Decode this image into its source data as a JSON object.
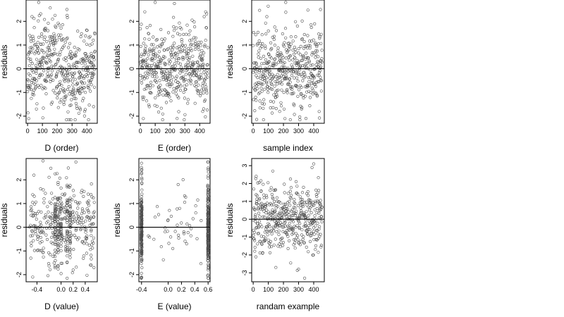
{
  "chart_data": [
    {
      "type": "scatter",
      "xlabel": "D (order)",
      "ylabel": "residuals",
      "xlim": [
        -10,
        470
      ],
      "ylim": [
        -2.3,
        2.9
      ],
      "xticks": [
        0,
        100,
        200,
        300,
        400
      ],
      "xtick_labels": [
        "0",
        "100",
        "200",
        "300",
        "400"
      ],
      "yticks": [
        -2,
        -1,
        0,
        1,
        2
      ],
      "ytick_labels": [
        "-2",
        "-1",
        "0",
        "1",
        "2"
      ],
      "hline": 0,
      "x_kind": "index",
      "x_max": 455,
      "n_points": 455,
      "noise_seed": 11,
      "sd": 0.85,
      "trend": "wave",
      "points": [
        {
          "x": 8,
          "y": -2.1
        },
        {
          "x": 30,
          "y": 2.2
        },
        {
          "x": 75,
          "y": 2.8
        },
        {
          "x": 60,
          "y": -1.7
        },
        {
          "x": 245,
          "y": -1.5
        },
        {
          "x": 265,
          "y": 2.5
        },
        {
          "x": 385,
          "y": -1.8
        },
        {
          "x": 445,
          "y": -1.6
        }
      ]
    },
    {
      "type": "scatter",
      "xlabel": "E (order)",
      "ylabel": "residuals",
      "xlim": [
        -10,
        470
      ],
      "ylim": [
        -2.3,
        2.9
      ],
      "xticks": [
        0,
        100,
        200,
        300,
        400
      ],
      "xtick_labels": [
        "0",
        "100",
        "200",
        "300",
        "400"
      ],
      "yticks": [
        -2,
        -1,
        0,
        1,
        2
      ],
      "ytick_labels": [
        "-2",
        "-1",
        "0",
        "1",
        "2"
      ],
      "hline": 0,
      "x_kind": "index",
      "x_max": 455,
      "n_points": 455,
      "noise_seed": 23,
      "sd": 0.85,
      "trend": "none",
      "points": [
        {
          "x": 20,
          "y": -2.1
        },
        {
          "x": 30,
          "y": 2.4
        },
        {
          "x": 100,
          "y": 2.8
        },
        {
          "x": 60,
          "y": -1.6
        },
        {
          "x": 420,
          "y": -1.8
        },
        {
          "x": 440,
          "y": 2.4
        },
        {
          "x": 430,
          "y": 2.2
        }
      ]
    },
    {
      "type": "scatter",
      "xlabel": "sample index",
      "ylabel": "residuals",
      "xlim": [
        -10,
        470
      ],
      "ylim": [
        -2.3,
        2.9
      ],
      "xticks": [
        0,
        100,
        200,
        300,
        400
      ],
      "xtick_labels": [
        "0",
        "100",
        "200",
        "300",
        "400"
      ],
      "yticks": [
        -2,
        -1,
        0,
        1,
        2
      ],
      "ytick_labels": [
        "-2",
        "-1",
        "0",
        "1",
        "2"
      ],
      "hline": 0,
      "x_kind": "index",
      "x_max": 455,
      "n_points": 455,
      "noise_seed": 37,
      "sd": 0.85,
      "trend": "none",
      "points": [
        {
          "x": 90,
          "y": 2.2
        },
        {
          "x": 215,
          "y": 2.8
        },
        {
          "x": 210,
          "y": -2.1
        },
        {
          "x": 445,
          "y": 2.5
        },
        {
          "x": 320,
          "y": -1.7
        },
        {
          "x": 175,
          "y": -1.8
        }
      ]
    },
    {
      "type": "scatter",
      "xlabel": "D (value)",
      "ylabel": "residuals",
      "xlim": [
        -0.58,
        0.6
      ],
      "ylim": [
        -2.3,
        2.9
      ],
      "xticks": [
        -0.4,
        0.0,
        0.2,
        0.4
      ],
      "xtick_labels": [
        "-0.4",
        "0.0",
        "0.2",
        "0.4"
      ],
      "yticks": [
        -2,
        -1,
        0,
        1,
        2
      ],
      "ytick_labels": [
        "-2",
        "-1",
        "0",
        "1",
        "2"
      ],
      "hline": 0,
      "x_kind": "uniform",
      "x_range": [
        -0.52,
        0.55
      ],
      "n_points": 455,
      "noise_seed": 51,
      "sd": 0.85,
      "trend": "none",
      "stacks": [
        -0.1,
        -0.05,
        0.0,
        0.1,
        0.15
      ],
      "points": [
        {
          "x": -0.47,
          "y": -2.1
        },
        {
          "x": -0.45,
          "y": 2.2
        },
        {
          "x": -0.3,
          "y": 2.8
        },
        {
          "x": 0.12,
          "y": 2.5
        },
        {
          "x": 0.2,
          "y": -1.8
        },
        {
          "x": 0.5,
          "y": -1.6
        }
      ]
    },
    {
      "type": "scatter",
      "xlabel": "E (value)",
      "ylabel": "residuals",
      "xlim": [
        -0.44,
        0.63
      ],
      "ylim": [
        -2.3,
        2.9
      ],
      "xticks": [
        -0.4,
        0.0,
        0.2,
        0.4,
        0.6
      ],
      "xtick_labels": [
        "-0.4",
        "0.0",
        "0.2",
        "0.4",
        "0.6"
      ],
      "yticks": [
        -2,
        -1,
        0,
        1,
        2
      ],
      "ytick_labels": [
        "-2",
        "-1",
        "0",
        "1",
        "2"
      ],
      "hline": 0,
      "x_kind": "two-columns",
      "columns": [
        -0.4,
        0.6
      ],
      "column_counts": [
        190,
        190
      ],
      "middle_count": 45,
      "middle_range": [
        -0.3,
        0.5
      ],
      "noise_seed": 67,
      "sd": 0.9,
      "trend": "none",
      "points": [
        {
          "x": -0.4,
          "y": 2.7
        },
        {
          "x": -0.4,
          "y": 2.4
        },
        {
          "x": -0.4,
          "y": -2.1
        },
        {
          "x": 0.6,
          "y": 2.5
        },
        {
          "x": 0.6,
          "y": -1.8
        },
        {
          "x": 0.15,
          "y": 1.8
        }
      ]
    },
    {
      "type": "scatter",
      "xlabel": "randam example",
      "ylabel": "residuals",
      "xlim": [
        -10,
        470
      ],
      "ylim": [
        -3.5,
        3.4
      ],
      "xticks": [
        0,
        100,
        200,
        300,
        400
      ],
      "xtick_labels": [
        "0",
        "100",
        "200",
        "300",
        "400"
      ],
      "yticks": [
        -3,
        -2,
        -1,
        0,
        1,
        2,
        3
      ],
      "ytick_labels": [
        "-3",
        "-2",
        "-1",
        "0",
        "1",
        "2",
        "3"
      ],
      "hline": 0,
      "x_kind": "index",
      "x_max": 455,
      "n_points": 455,
      "noise_seed": 83,
      "sd": 1.0,
      "trend": "none",
      "points": [
        {
          "x": 400,
          "y": 3.1
        },
        {
          "x": 340,
          "y": -3.3
        },
        {
          "x": 150,
          "y": -2.7
        },
        {
          "x": 300,
          "y": -2.8
        },
        {
          "x": 130,
          "y": 2.7
        },
        {
          "x": 20,
          "y": 2.4
        }
      ]
    }
  ]
}
